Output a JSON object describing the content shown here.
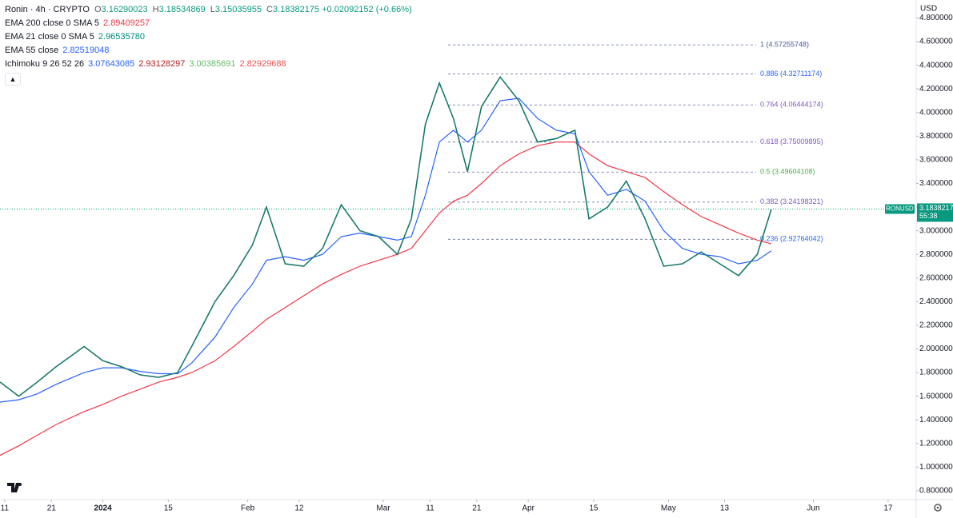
{
  "chart_data": {
    "type": "line",
    "currency": "USD",
    "symbol_tag": "RONUSD",
    "last_price": 3.18382175,
    "countdown": "55:38",
    "ohlc": [
      {
        "key": "O",
        "value": "3.16290023"
      },
      {
        "key": "H",
        "value": "3.18534869"
      },
      {
        "key": "L",
        "value": "3.15035955"
      },
      {
        "key": "C",
        "value": "3.18382175"
      }
    ],
    "change": "+0.02092152 (+0.66%)",
    "indicators": [
      {
        "name": "EMA 21 close 0 SMA 5",
        "values": [
          "2.96535780"
        ],
        "colors": [
          "#00897b"
        ]
      },
      {
        "name": "Ichimoku 9 26 52 26",
        "values": [
          "3.07643085",
          "2.93128297",
          "3.00385691",
          "2.82929688"
        ],
        "colors": [
          "#2962ff",
          "#b71c1c",
          "#66bb6a",
          "#ef5350"
        ]
      }
    ],
    "xlim": [
      "2023-12-10",
      "2024-06-23"
    ],
    "xticks": [
      {
        "value": "2023-12-11",
        "label": "11"
      },
      {
        "value": "2023-12-21",
        "label": "21"
      },
      {
        "value": "2024-01-01",
        "label": "2024"
      },
      {
        "value": "2024-01-15",
        "label": "15"
      },
      {
        "value": "2024-02-01",
        "label": "Feb"
      },
      {
        "value": "2024-02-12",
        "label": "12"
      },
      {
        "value": "2024-03-01",
        "label": "Mar"
      },
      {
        "value": "2024-03-11",
        "label": "11"
      },
      {
        "value": "2024-03-21",
        "label": "21"
      },
      {
        "value": "2024-04-01",
        "label": "Apr"
      },
      {
        "value": "2024-04-15",
        "label": "15"
      },
      {
        "value": "2024-05-01",
        "label": "May"
      },
      {
        "value": "2024-05-13",
        "label": "13"
      },
      {
        "value": "2024-06-01",
        "label": "Jun"
      },
      {
        "value": "2024-06-17",
        "label": "17"
      }
    ],
    "ylim": [
      0.725,
      4.952
    ],
    "yticks": [
      {
        "value": 0.8,
        "label": "0.80000000"
      },
      {
        "value": 1.0,
        "label": "1.00000000"
      },
      {
        "value": 1.2,
        "label": "1.20000000"
      },
      {
        "value": 1.4,
        "label": "1.40000000"
      },
      {
        "value": 1.6,
        "label": "1.60000000"
      },
      {
        "value": 1.8,
        "label": "1.80000000"
      },
      {
        "value": 2.0,
        "label": "2.00000000"
      },
      {
        "value": 2.2,
        "label": "2.20000000"
      },
      {
        "value": 2.4,
        "label": "2.40000000"
      },
      {
        "value": 2.6,
        "label": "2.60000000"
      },
      {
        "value": 2.8,
        "label": "2.80000000"
      },
      {
        "value": 3.0,
        "label": "3.00000000"
      },
      {
        "value": 3.2,
        "label": "3.20000000"
      },
      {
        "value": 3.4,
        "label": "3.40000000"
      },
      {
        "value": 3.6,
        "label": "3.60000000"
      },
      {
        "value": 3.8,
        "label": "3.80000000"
      },
      {
        "value": 4.0,
        "label": "4.00000000"
      },
      {
        "value": 4.2,
        "label": "4.20000000"
      },
      {
        "value": 4.4,
        "label": "4.40000000"
      },
      {
        "value": 4.6,
        "label": "4.60000000"
      },
      {
        "value": 4.8,
        "label": "4.80000000"
      }
    ],
    "grid": false,
    "x": [
      "2023-12-10",
      "2023-12-14",
      "2023-12-18",
      "2023-12-22",
      "2023-12-28",
      "2024-01-01",
      "2024-01-05",
      "2024-01-09",
      "2024-01-13",
      "2024-01-17",
      "2024-01-20",
      "2024-01-25",
      "2024-01-29",
      "2024-02-02",
      "2024-02-05",
      "2024-02-09",
      "2024-02-13",
      "2024-02-17",
      "2024-02-21",
      "2024-02-25",
      "2024-02-29",
      "2024-03-04",
      "2024-03-07",
      "2024-03-10",
      "2024-03-13",
      "2024-03-16",
      "2024-03-19",
      "2024-03-22",
      "2024-03-26",
      "2024-03-30",
      "2024-04-03",
      "2024-04-07",
      "2024-04-11",
      "2024-04-14",
      "2024-04-18",
      "2024-04-22",
      "2024-04-26",
      "2024-04-30",
      "2024-05-04",
      "2024-05-08",
      "2024-05-12",
      "2024-05-16",
      "2024-05-20",
      "2024-05-23"
    ],
    "series": [
      {
        "name": "Ronin · 4h · CRYPTO",
        "color": "#1b7a6c",
        "values": [
          1.72,
          1.6,
          1.72,
          1.85,
          2.02,
          1.9,
          1.85,
          1.78,
          1.76,
          1.8,
          2.02,
          2.4,
          2.62,
          2.88,
          3.2,
          2.72,
          2.7,
          2.85,
          3.22,
          3.0,
          2.95,
          2.8,
          3.1,
          3.9,
          4.25,
          3.95,
          3.5,
          4.05,
          4.3,
          4.1,
          3.75,
          3.78,
          3.85,
          3.1,
          3.2,
          3.42,
          3.1,
          2.7,
          2.72,
          2.82,
          2.72,
          2.62,
          2.8,
          3.18
        ]
      },
      {
        "name": "EMA 55 close",
        "legend_value": "2.82519048",
        "color": "#2962ff",
        "values": [
          1.55,
          1.57,
          1.62,
          1.7,
          1.8,
          1.84,
          1.84,
          1.81,
          1.79,
          1.79,
          1.88,
          2.1,
          2.35,
          2.55,
          2.75,
          2.78,
          2.75,
          2.8,
          2.95,
          2.98,
          2.95,
          2.92,
          2.95,
          3.3,
          3.75,
          3.85,
          3.75,
          3.85,
          4.1,
          4.12,
          3.95,
          3.85,
          3.82,
          3.5,
          3.3,
          3.35,
          3.25,
          3.0,
          2.85,
          2.8,
          2.78,
          2.72,
          2.75,
          2.83
        ]
      },
      {
        "name": "EMA 200 close 0 SMA 5",
        "legend_value": "2.89409257",
        "color": "#f23645",
        "values": [
          1.1,
          1.18,
          1.27,
          1.36,
          1.47,
          1.53,
          1.6,
          1.66,
          1.72,
          1.76,
          1.8,
          1.9,
          2.02,
          2.15,
          2.25,
          2.35,
          2.45,
          2.55,
          2.63,
          2.7,
          2.75,
          2.8,
          2.85,
          3.0,
          3.15,
          3.25,
          3.3,
          3.4,
          3.55,
          3.65,
          3.72,
          3.75,
          3.75,
          3.65,
          3.55,
          3.5,
          3.45,
          3.33,
          3.22,
          3.12,
          3.05,
          2.98,
          2.92,
          2.89
        ]
      }
    ],
    "fib_levels": [
      {
        "value": 4.57255748,
        "label": "1 (4.57255748)",
        "color": "#4a5a9a"
      },
      {
        "value": 4.32711174,
        "label": "0.886 (4.32711174)",
        "color": "#2962ff"
      },
      {
        "value": 4.06444174,
        "label": "0.764 (4.06444174)",
        "color": "#7e57c2"
      },
      {
        "value": 3.75009895,
        "label": "0.618 (3.75009895)",
        "color": "#7e57c2"
      },
      {
        "value": 3.49604108,
        "label": "0.5 (3.49604108)",
        "color": "#4caf50"
      },
      {
        "value": 3.24198321,
        "label": "0.382 (3.24198321)",
        "color": "#7e57c2"
      },
      {
        "value": 2.92764042,
        "label": "0.236 (2.92764042)",
        "color": "#2962ff"
      }
    ]
  }
}
